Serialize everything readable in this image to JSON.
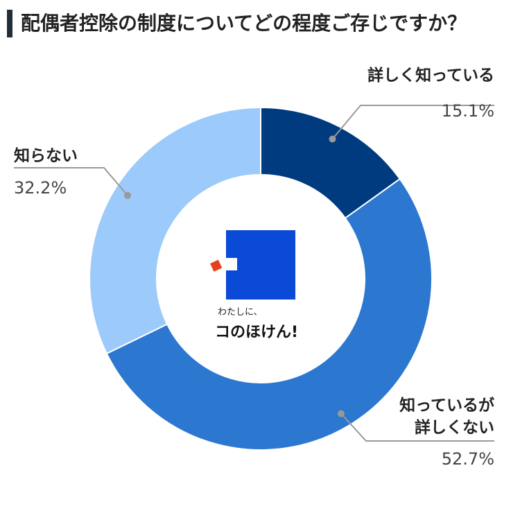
{
  "header": {
    "title": "配偶者控除の制度についてどの程度ご存じですか？",
    "bar_color": "#222d3c"
  },
  "logo": {
    "tagline": "わたしに、",
    "name": "コのほけん!",
    "square_color": "#0a4ad6",
    "accent_color": "#e8401c"
  },
  "chart_data": {
    "type": "pie",
    "variant": "donut",
    "start_angle_deg": 0,
    "direction": "clockwise",
    "slices": [
      {
        "label_lines": [
          "詳しく知っている"
        ],
        "value": 15.1,
        "value_label": "15.1%",
        "color": "#003b80"
      },
      {
        "label_lines": [
          "知っているが",
          "詳しくない"
        ],
        "value": 52.7,
        "value_label": "52.7%",
        "color": "#2c77cf"
      },
      {
        "label_lines": [
          "知らない"
        ],
        "value": 32.2,
        "value_label": "32.2%",
        "color": "#9ccafb"
      }
    ]
  }
}
